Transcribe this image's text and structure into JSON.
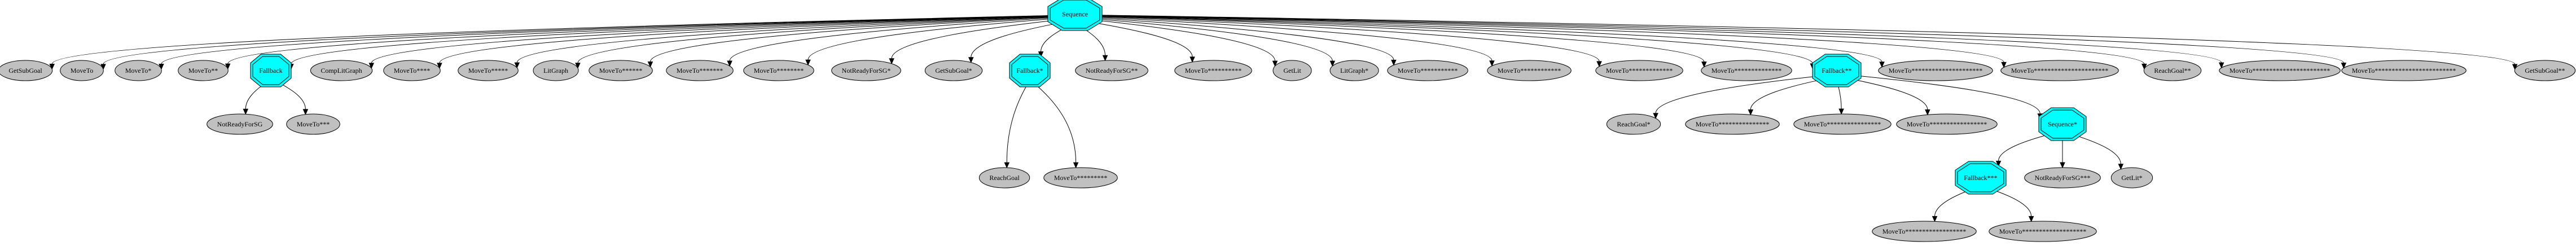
{
  "colors": {
    "control": "#00ffff",
    "leaf": "#c0c0c0",
    "stroke": "#000000"
  },
  "nodes": [
    {
      "id": "root",
      "label": "Sequence",
      "shape": "octagon",
      "color": "control"
    },
    {
      "id": "n1",
      "label": "GetSubGoal",
      "shape": "ellipse",
      "color": "leaf"
    },
    {
      "id": "n2",
      "label": "MoveTo",
      "shape": "ellipse",
      "color": "leaf"
    },
    {
      "id": "n3",
      "label": "MoveTo*",
      "shape": "ellipse",
      "color": "leaf"
    },
    {
      "id": "n4",
      "label": "MoveTo**",
      "shape": "ellipse",
      "color": "leaf"
    },
    {
      "id": "fb1",
      "label": "Fallback",
      "shape": "octagon",
      "color": "control"
    },
    {
      "id": "n5",
      "label": "CompLitGraph",
      "shape": "ellipse",
      "color": "leaf"
    },
    {
      "id": "n6",
      "label": "MoveTo****",
      "shape": "ellipse",
      "color": "leaf"
    },
    {
      "id": "n7",
      "label": "MoveTo*****",
      "shape": "ellipse",
      "color": "leaf"
    },
    {
      "id": "n8",
      "label": "LitGraph",
      "shape": "ellipse",
      "color": "leaf"
    },
    {
      "id": "n9",
      "label": "MoveTo******",
      "shape": "ellipse",
      "color": "leaf"
    },
    {
      "id": "n10",
      "label": "MoveTo*******",
      "shape": "ellipse",
      "color": "leaf"
    },
    {
      "id": "n11",
      "label": "MoveTo********",
      "shape": "ellipse",
      "color": "leaf"
    },
    {
      "id": "n12",
      "label": "NotReadyForSG*",
      "shape": "ellipse",
      "color": "leaf"
    },
    {
      "id": "n13",
      "label": "GetSubGoal*",
      "shape": "ellipse",
      "color": "leaf"
    },
    {
      "id": "fb2",
      "label": "Fallback*",
      "shape": "octagon",
      "color": "control"
    },
    {
      "id": "n14",
      "label": "NotReadyForSG**",
      "shape": "ellipse",
      "color": "leaf"
    },
    {
      "id": "n15",
      "label": "MoveTo**********",
      "shape": "ellipse",
      "color": "leaf"
    },
    {
      "id": "n16",
      "label": "GetLit",
      "shape": "ellipse",
      "color": "leaf"
    },
    {
      "id": "n17",
      "label": "LitGraph*",
      "shape": "ellipse",
      "color": "leaf"
    },
    {
      "id": "n18",
      "label": "MoveTo***********",
      "shape": "ellipse",
      "color": "leaf"
    },
    {
      "id": "n19",
      "label": "MoveTo************",
      "shape": "ellipse",
      "color": "leaf"
    },
    {
      "id": "n20",
      "label": "MoveTo*************",
      "shape": "ellipse",
      "color": "leaf"
    },
    {
      "id": "n21",
      "label": "MoveTo**************",
      "shape": "ellipse",
      "color": "leaf"
    },
    {
      "id": "fb3",
      "label": "Fallback**",
      "shape": "octagon",
      "color": "control"
    },
    {
      "id": "n22",
      "label": "MoveTo*********************",
      "shape": "ellipse",
      "color": "leaf"
    },
    {
      "id": "n23",
      "label": "MoveTo**********************",
      "shape": "ellipse",
      "color": "leaf"
    },
    {
      "id": "n24",
      "label": "ReachGoal**",
      "shape": "ellipse",
      "color": "leaf"
    },
    {
      "id": "n25",
      "label": "MoveTo***********************",
      "shape": "ellipse",
      "color": "leaf"
    },
    {
      "id": "n26",
      "label": "MoveTo************************",
      "shape": "ellipse",
      "color": "leaf"
    },
    {
      "id": "n27",
      "label": "GetSubGoal**",
      "shape": "ellipse",
      "color": "leaf"
    },
    {
      "id": "c1",
      "label": "NotReadyForSG",
      "shape": "ellipse",
      "color": "leaf"
    },
    {
      "id": "c2",
      "label": "MoveTo***",
      "shape": "ellipse",
      "color": "leaf"
    },
    {
      "id": "c3",
      "label": "ReachGoal",
      "shape": "ellipse",
      "color": "leaf"
    },
    {
      "id": "c4",
      "label": "MoveTo*********",
      "shape": "ellipse",
      "color": "leaf"
    },
    {
      "id": "c5",
      "label": "ReachGoal*",
      "shape": "ellipse",
      "color": "leaf"
    },
    {
      "id": "c6",
      "label": "MoveTo***************",
      "shape": "ellipse",
      "color": "leaf"
    },
    {
      "id": "c7",
      "label": "MoveTo****************",
      "shape": "ellipse",
      "color": "leaf"
    },
    {
      "id": "c8",
      "label": "MoveTo*****************",
      "shape": "ellipse",
      "color": "leaf"
    },
    {
      "id": "seq2",
      "label": "Sequence*",
      "shape": "octagon",
      "color": "control"
    },
    {
      "id": "fb4",
      "label": "Fallback***",
      "shape": "octagon",
      "color": "control"
    },
    {
      "id": "c9",
      "label": "NotReadyForSG***",
      "shape": "ellipse",
      "color": "leaf"
    },
    {
      "id": "c10",
      "label": "GetLit*",
      "shape": "ellipse",
      "color": "leaf"
    },
    {
      "id": "c11",
      "label": "MoveTo******************",
      "shape": "ellipse",
      "color": "leaf"
    },
    {
      "id": "c12",
      "label": "MoveTo*******************",
      "shape": "ellipse",
      "color": "leaf"
    }
  ],
  "edges": [
    [
      "root",
      "n1"
    ],
    [
      "root",
      "n2"
    ],
    [
      "root",
      "n3"
    ],
    [
      "root",
      "n4"
    ],
    [
      "root",
      "fb1"
    ],
    [
      "root",
      "n5"
    ],
    [
      "root",
      "n6"
    ],
    [
      "root",
      "n7"
    ],
    [
      "root",
      "n8"
    ],
    [
      "root",
      "n9"
    ],
    [
      "root",
      "n10"
    ],
    [
      "root",
      "n11"
    ],
    [
      "root",
      "n12"
    ],
    [
      "root",
      "n13"
    ],
    [
      "root",
      "fb2"
    ],
    [
      "root",
      "n14"
    ],
    [
      "root",
      "n15"
    ],
    [
      "root",
      "n16"
    ],
    [
      "root",
      "n17"
    ],
    [
      "root",
      "n18"
    ],
    [
      "root",
      "n19"
    ],
    [
      "root",
      "n20"
    ],
    [
      "root",
      "n21"
    ],
    [
      "root",
      "fb3"
    ],
    [
      "root",
      "n22"
    ],
    [
      "root",
      "n23"
    ],
    [
      "root",
      "n24"
    ],
    [
      "root",
      "n25"
    ],
    [
      "root",
      "n26"
    ],
    [
      "root",
      "n27"
    ],
    [
      "fb1",
      "c1"
    ],
    [
      "fb1",
      "c2"
    ],
    [
      "fb2",
      "c3"
    ],
    [
      "fb2",
      "c4"
    ],
    [
      "fb3",
      "c5"
    ],
    [
      "fb3",
      "c6"
    ],
    [
      "fb3",
      "c7"
    ],
    [
      "fb3",
      "c8"
    ],
    [
      "fb3",
      "seq2"
    ],
    [
      "seq2",
      "fb4"
    ],
    [
      "seq2",
      "c9"
    ],
    [
      "seq2",
      "c10"
    ],
    [
      "fb4",
      "c11"
    ],
    [
      "fb4",
      "c12"
    ]
  ]
}
